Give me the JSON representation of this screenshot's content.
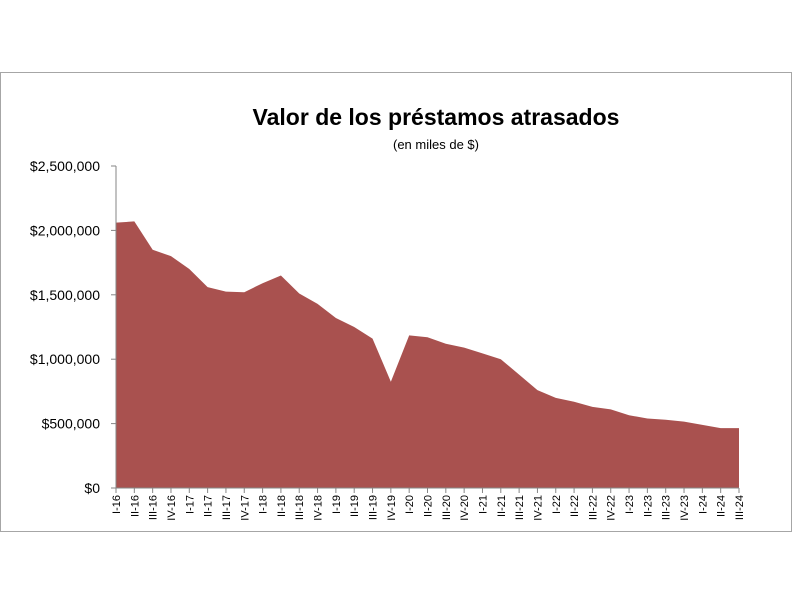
{
  "chart_data": {
    "type": "area",
    "title": "Valor de los préstamos atrasados",
    "subtitle": "(en miles de $)",
    "xlabel": "",
    "ylabel": "",
    "ylim": [
      0,
      2500000
    ],
    "y_ticks": [
      0,
      500000,
      1000000,
      1500000,
      2000000,
      2500000
    ],
    "y_tick_labels": [
      "$0",
      "$500,000",
      "$1,000,000",
      "$1,500,000",
      "$2,000,000",
      "$2,500,000"
    ],
    "grid": false,
    "legend": "none",
    "categories": [
      "I-16",
      "II-16",
      "III-16",
      "IV-16",
      "I-17",
      "II-17",
      "III-17",
      "IV-17",
      "I-18",
      "II-18",
      "III-18",
      "IV-18",
      "I-19",
      "II-19",
      "III-19",
      "IV-19",
      "I-20",
      "II-20",
      "III-20",
      "IV-20",
      "I-21",
      "II-21",
      "III-21",
      "IV-21",
      "I-22",
      "II-22",
      "III-22",
      "IV-22",
      "I-23",
      "II-23",
      "III-23",
      "IV-23",
      "I-24",
      "II-24",
      "III-24"
    ],
    "values": [
      2060000,
      2070000,
      1850000,
      1800000,
      1700000,
      1560000,
      1525000,
      1520000,
      1590000,
      1650000,
      1510000,
      1430000,
      1320000,
      1250000,
      1160000,
      825000,
      1185000,
      1170000,
      1120000,
      1090000,
      1045000,
      1000000,
      880000,
      760000,
      700000,
      670000,
      630000,
      610000,
      565000,
      540000,
      530000,
      515000,
      490000,
      465000,
      465000
    ],
    "colors": {
      "area": "#a9514f",
      "axis": "#868686"
    }
  }
}
